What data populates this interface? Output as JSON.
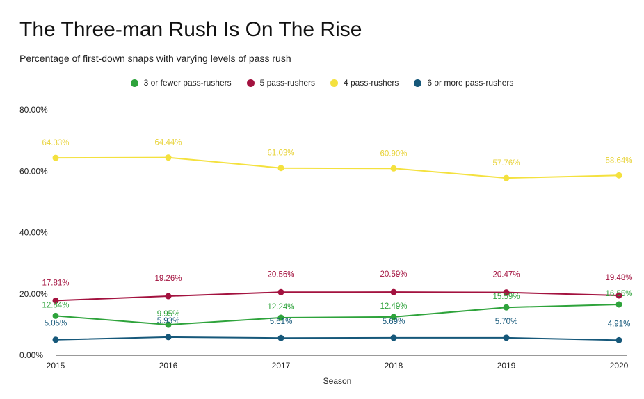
{
  "chart_data": {
    "type": "line",
    "title": "The Three-man Rush Is On The Rise",
    "subtitle": "Percentage of first-down snaps with varying levels of pass rush",
    "xlabel": "Season",
    "ylabel": "",
    "ylim": [
      0,
      80
    ],
    "y_ticks": [
      "0.00%",
      "20.00%",
      "40.00%",
      "60.00%",
      "80.00%"
    ],
    "y_tick_values": [
      0,
      20,
      40,
      60,
      80
    ],
    "legend_position": "top-center",
    "grid": false,
    "x": [
      "2015",
      "2016",
      "2017",
      "2018",
      "2019",
      "2020"
    ],
    "series": [
      {
        "name": "3 or fewer pass-rushers",
        "color": "#2ea33b",
        "values": [
          12.84,
          9.95,
          12.24,
          12.49,
          15.59,
          16.55
        ],
        "labels": [
          "12.84%",
          "9.95%",
          "12.24%",
          "12.49%",
          "15.59%",
          "16.55%"
        ]
      },
      {
        "name": "5 pass-rushers",
        "color": "#a3123f",
        "values": [
          17.81,
          19.26,
          20.56,
          20.59,
          20.47,
          19.48
        ],
        "labels": [
          "17.81%",
          "19.26%",
          "20.56%",
          "20.59%",
          "20.47%",
          "19.48%"
        ]
      },
      {
        "name": "4 pass-rushers",
        "color": "#f4e13e",
        "values": [
          64.33,
          64.44,
          61.03,
          60.9,
          57.76,
          58.64
        ],
        "labels": [
          "64.33%",
          "64.44%",
          "61.03%",
          "60.90%",
          "57.76%",
          "58.64%"
        ]
      },
      {
        "name": "6 or more pass-rushers",
        "color": "#16587a",
        "values": [
          5.05,
          5.93,
          5.61,
          5.69,
          5.7,
          4.91
        ],
        "labels": [
          "5.05%",
          "5.93%",
          "5.61%",
          "5.69%",
          "5.70%",
          "4.91%"
        ]
      }
    ]
  }
}
